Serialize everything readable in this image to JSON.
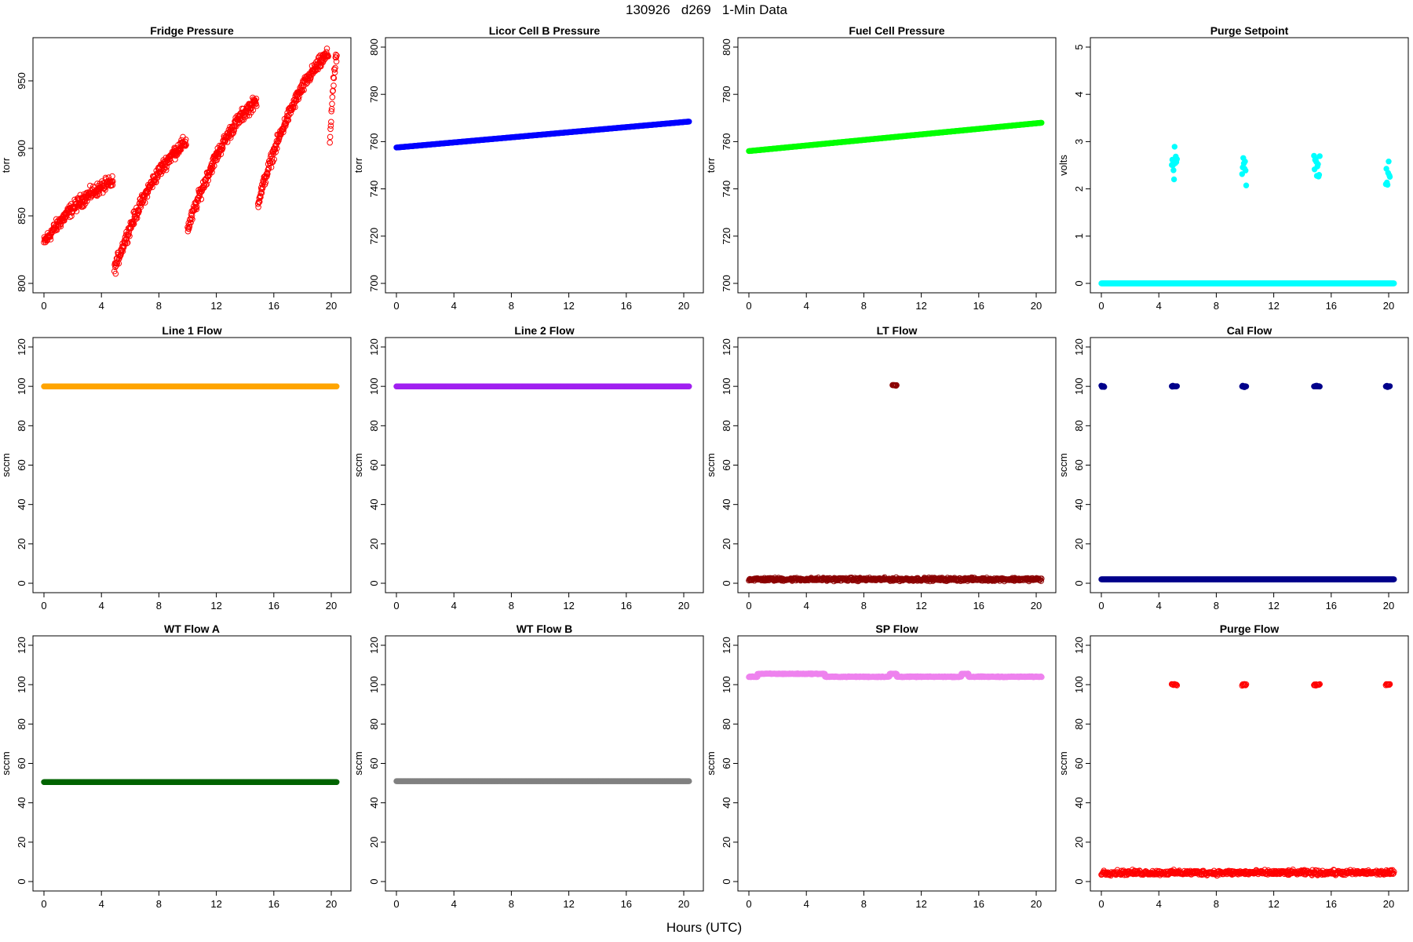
{
  "figure": {
    "title": "130926   d269   1-Min Data",
    "xlabel": "Hours (UTC)"
  },
  "chart_data": [
    {
      "type": "scatter",
      "title": "Fridge Pressure",
      "ylabel": "torr",
      "xlim": [
        0,
        20.6
      ],
      "ylim": [
        800,
        975
      ],
      "xticks": [
        0,
        4,
        8,
        12,
        16,
        20
      ],
      "yticks": [
        800,
        850,
        900,
        950
      ],
      "color": "#ff0000",
      "marker": "open-circle",
      "series": [
        {
          "segments": [
            [
              0.0,
              4.8,
              830,
              875
            ],
            [
              4.9,
              9.9,
              810,
              905
            ],
            [
              10.0,
              14.8,
              840,
              935
            ],
            [
              14.9,
              19.8,
              860,
              970
            ],
            [
              19.9,
              20.4,
              905,
              970
            ]
          ]
        }
      ]
    },
    {
      "type": "scatter",
      "title": "Licor Cell B Pressure",
      "ylabel": "torr",
      "xlim": [
        0,
        20.6
      ],
      "ylim": [
        700,
        800
      ],
      "xticks": [
        0,
        4,
        8,
        12,
        16,
        20
      ],
      "yticks": [
        700,
        720,
        740,
        760,
        780,
        800
      ],
      "color": "#0000ff",
      "marker": "filled",
      "series": [
        {
          "x": [
            0,
            20.4
          ],
          "y": [
            757.5,
            768.5
          ]
        }
      ]
    },
    {
      "type": "scatter",
      "title": "Fuel Cell Pressure",
      "ylabel": "torr",
      "xlim": [
        0,
        20.6
      ],
      "ylim": [
        700,
        800
      ],
      "xticks": [
        0,
        4,
        8,
        12,
        16,
        20
      ],
      "yticks": [
        700,
        720,
        740,
        760,
        780,
        800
      ],
      "color": "#00ff00",
      "marker": "filled",
      "series": [
        {
          "x": [
            0,
            20.4
          ],
          "y": [
            756,
            768
          ]
        }
      ]
    },
    {
      "type": "scatter",
      "title": "Purge Setpoint",
      "ylabel": "volts",
      "xlim": [
        0,
        20.6
      ],
      "ylim": [
        0,
        5
      ],
      "xticks": [
        0,
        4,
        8,
        12,
        16,
        20
      ],
      "yticks": [
        0,
        1,
        2,
        3,
        4,
        5
      ],
      "color": "#00ffff",
      "marker": "filled",
      "series": [
        {
          "baseline": 0,
          "x": [
            0,
            20.4
          ],
          "events": [
            [
              4.9,
              5.3,
              2.45
            ],
            [
              9.8,
              10.1,
              2.4
            ],
            [
              14.8,
              15.2,
              2.42
            ],
            [
              19.8,
              20.1,
              2.4
            ]
          ]
        }
      ]
    },
    {
      "type": "scatter",
      "title": "Line 1 Flow",
      "ylabel": "sccm",
      "xlim": [
        0,
        20.6
      ],
      "ylim": [
        0,
        120
      ],
      "xticks": [
        0,
        4,
        8,
        12,
        16,
        20
      ],
      "yticks": [
        0,
        20,
        40,
        60,
        80,
        100,
        120
      ],
      "color": "#ffa500",
      "marker": "filled",
      "series": [
        {
          "x": [
            0,
            20.4
          ],
          "y": [
            100,
            100
          ]
        }
      ]
    },
    {
      "type": "scatter",
      "title": "Line 2 Flow",
      "ylabel": "sccm",
      "xlim": [
        0,
        20.6
      ],
      "ylim": [
        0,
        120
      ],
      "xticks": [
        0,
        4,
        8,
        12,
        16,
        20
      ],
      "yticks": [
        0,
        20,
        40,
        60,
        80,
        100,
        120
      ],
      "color": "#a020f0",
      "marker": "filled",
      "series": [
        {
          "x": [
            0,
            20.4
          ],
          "y": [
            100,
            100
          ]
        }
      ]
    },
    {
      "type": "scatter",
      "title": "LT Flow",
      "ylabel": "sccm",
      "xlim": [
        0,
        20.6
      ],
      "ylim": [
        0,
        120
      ],
      "xticks": [
        0,
        4,
        8,
        12,
        16,
        20
      ],
      "yticks": [
        0,
        20,
        40,
        60,
        80,
        100,
        120
      ],
      "color": "#8b0000",
      "marker": "open-circle",
      "series": [
        {
          "baseline": 2,
          "noise": 1.2,
          "x": [
            0,
            20.4
          ],
          "events": [
            [
              10.0,
              10.3,
              100.5
            ]
          ]
        }
      ]
    },
    {
      "type": "scatter",
      "title": "Cal Flow",
      "ylabel": "sccm",
      "xlim": [
        0,
        20.6
      ],
      "ylim": [
        0,
        120
      ],
      "xticks": [
        0,
        4,
        8,
        12,
        16,
        20
      ],
      "yticks": [
        0,
        20,
        40,
        60,
        80,
        100,
        120
      ],
      "color": "#00008b",
      "marker": "filled",
      "series": [
        {
          "baseline": 2,
          "x": [
            0,
            20.4
          ],
          "events": [
            [
              0.0,
              0.2,
              100
            ],
            [
              4.9,
              5.3,
              100
            ],
            [
              9.8,
              10.1,
              100
            ],
            [
              14.8,
              15.2,
              100
            ],
            [
              19.8,
              20.1,
              100
            ]
          ]
        }
      ]
    },
    {
      "type": "scatter",
      "title": "WT Flow A",
      "ylabel": "sccm",
      "xlim": [
        0,
        20.6
      ],
      "ylim": [
        0,
        120
      ],
      "xticks": [
        0,
        4,
        8,
        12,
        16,
        20
      ],
      "yticks": [
        0,
        20,
        40,
        60,
        80,
        100,
        120
      ],
      "color": "#006400",
      "marker": "filled",
      "series": [
        {
          "x": [
            0,
            20.4
          ],
          "y": [
            50.5,
            50.5
          ]
        }
      ]
    },
    {
      "type": "scatter",
      "title": "WT Flow B",
      "ylabel": "sccm",
      "xlim": [
        0,
        20.6
      ],
      "ylim": [
        0,
        120
      ],
      "xticks": [
        0,
        4,
        8,
        12,
        16,
        20
      ],
      "yticks": [
        0,
        20,
        40,
        60,
        80,
        100,
        120
      ],
      "color": "#808080",
      "marker": "filled",
      "series": [
        {
          "x": [
            0,
            20.4
          ],
          "y": [
            51,
            51
          ]
        }
      ]
    },
    {
      "type": "scatter",
      "title": "SP Flow",
      "ylabel": "sccm",
      "xlim": [
        0,
        20.6
      ],
      "ylim": [
        0,
        120
      ],
      "xticks": [
        0,
        4,
        8,
        12,
        16,
        20
      ],
      "yticks": [
        0,
        20,
        40,
        60,
        80,
        100,
        120
      ],
      "color": "#ee82ee",
      "marker": "open-circle",
      "series": [
        {
          "steps": [
            [
              0.0,
              0.6,
              104
            ],
            [
              0.6,
              5.3,
              105.5
            ],
            [
              5.3,
              9.8,
              104
            ],
            [
              9.8,
              10.3,
              105.5
            ],
            [
              10.3,
              14.8,
              104
            ],
            [
              14.8,
              15.3,
              105.5
            ],
            [
              15.3,
              20.4,
              104
            ]
          ]
        }
      ]
    },
    {
      "type": "scatter",
      "title": "Purge Flow",
      "ylabel": "sccm",
      "xlim": [
        0,
        20.6
      ],
      "ylim": [
        0,
        120
      ],
      "xticks": [
        0,
        4,
        8,
        12,
        16,
        20
      ],
      "yticks": [
        0,
        20,
        40,
        60,
        80,
        100,
        120
      ],
      "color": "#ff0000",
      "marker": "open-circle",
      "series": [
        {
          "baseline": 4.5,
          "noise": 1.8,
          "x": [
            0,
            20.4
          ],
          "events": [
            [
              4.9,
              5.3,
              100
            ],
            [
              9.8,
              10.1,
              100
            ],
            [
              14.8,
              15.2,
              100
            ],
            [
              19.8,
              20.1,
              100
            ]
          ]
        }
      ]
    }
  ]
}
